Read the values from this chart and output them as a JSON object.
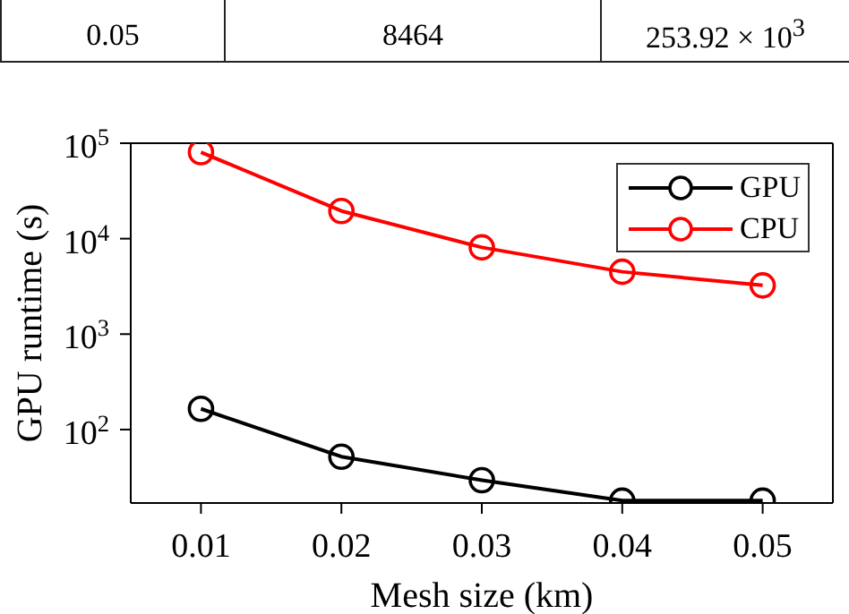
{
  "chart_data": {
    "type": "line",
    "xlabel": "Mesh size (km)",
    "ylabel": "GPU runtime (s)",
    "annotations": [
      "0.05",
      "8464",
      "253.92 × 10$^{3}$"
    ],
    "x": [
      0.01,
      0.02,
      0.03,
      0.04,
      0.05
    ],
    "series": [
      {
        "name": "GPU",
        "color": "#000000",
        "values": [
          165,
          52,
          29.5,
          18,
          18
        ]
      },
      {
        "name": "CPU",
        "color": "#ff0000",
        "values": [
          80500,
          19500,
          8100,
          4500,
          3240
        ]
      }
    ],
    "xlim": [
      0.005,
      0.055
    ],
    "xticks": [
      0.01,
      0.02,
      0.03,
      0.04,
      0.05
    ],
    "ylim": [
      17,
      100000
    ],
    "yticks": [
      {
        "value": 100,
        "label": "10$^{2}$"
      },
      {
        "value": 1000,
        "label": "10$^{3}$"
      },
      {
        "value": 10000,
        "label": "10$^{4}$"
      },
      {
        "value": 100000,
        "label": "10$^{5}$"
      }
    ],
    "log": "y",
    "grid": false,
    "legend": "top right",
    "marker": "circle",
    "line_style": "solid"
  }
}
